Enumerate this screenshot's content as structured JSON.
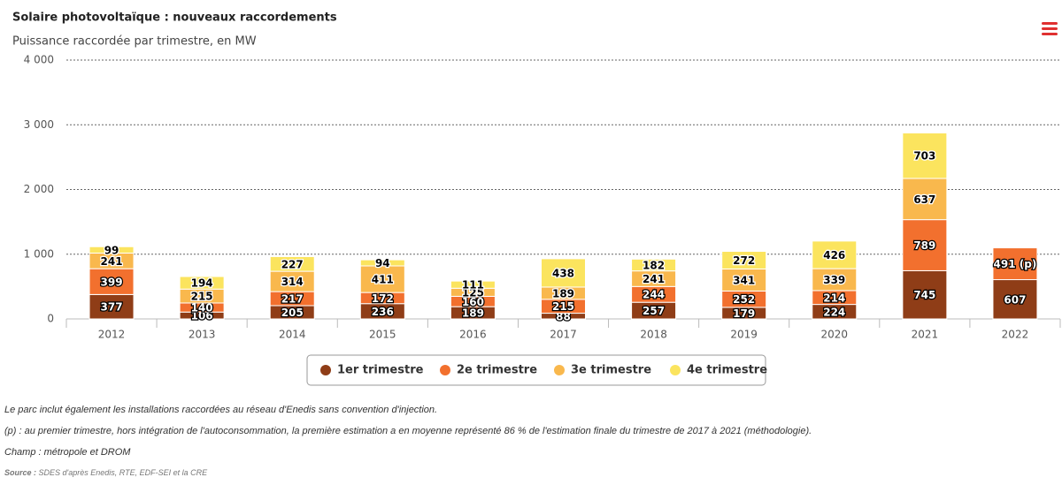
{
  "chart_data": {
    "type": "bar",
    "stacked": true,
    "title": "Solaire photovoltaïque : nouveaux raccordements",
    "subtitle": "Puissance raccordée par trimestre, en MW",
    "categories": [
      "2012",
      "2013",
      "2014",
      "2015",
      "2016",
      "2017",
      "2018",
      "2019",
      "2020",
      "2021",
      "2022"
    ],
    "series": [
      {
        "name": "1er trimestre",
        "color": "#8f3d17",
        "values": [
          377,
          106,
          205,
          236,
          189,
          88,
          257,
          179,
          224,
          745,
          607
        ]
      },
      {
        "name": "2e trimestre",
        "color": "#f2702e",
        "values": [
          399,
          140,
          217,
          172,
          160,
          215,
          244,
          252,
          214,
          789,
          491
        ],
        "value_labels": [
          "399",
          "140",
          "217",
          "172",
          "160",
          "215",
          "244",
          "252",
          "214",
          "789",
          "491 (p)"
        ]
      },
      {
        "name": "3e trimestre",
        "color": "#f9b84d",
        "values": [
          241,
          215,
          314,
          411,
          125,
          189,
          241,
          341,
          339,
          637,
          null
        ]
      },
      {
        "name": "4e trimestre",
        "color": "#fbe45e",
        "values": [
          99,
          194,
          227,
          94,
          111,
          438,
          182,
          272,
          426,
          703,
          null
        ]
      }
    ],
    "ylim": [
      0,
      4000
    ],
    "yticks": [
      0,
      {
        "value": 1000,
        "label": "1 000"
      },
      {
        "value": 2000,
        "label": "2 000"
      },
      {
        "value": 3000,
        "label": "3 000"
      },
      {
        "value": 4000,
        "label": "4 000"
      }
    ],
    "grid": true,
    "legend": "bottom"
  },
  "notes": [
    "Le parc inclut également les installations raccordées au réseau d'Enedis sans convention d'injection.",
    "(p) : au premier trimestre, hors intégration de l'autoconsommation, la première estimation a en moyenne représenté 86 % de l'estimation finale du trimestre de 2017 à 2021 (méthodologie).",
    "Champ : métropole et DROM"
  ],
  "source": {
    "label": "Source :",
    "text": "SDES d'après Enedis, RTE, EDF-SEI et la CRE"
  }
}
